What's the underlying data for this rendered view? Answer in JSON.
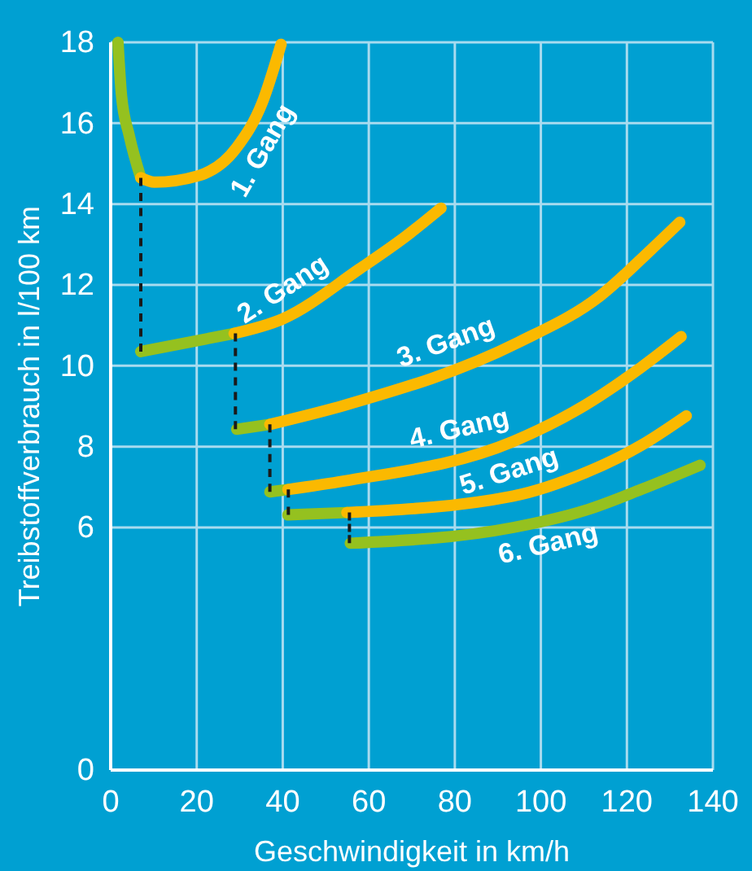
{
  "chart_data": {
    "type": "line",
    "xlabel": "Geschwindigkeit in km/h",
    "ylabel": "Treibstoffverbrauch in l/100 km",
    "xlim": [
      0,
      140
    ],
    "xticks": [
      0,
      20,
      40,
      60,
      80,
      100,
      120,
      140
    ],
    "ylim": [
      0,
      18
    ],
    "yticks": [
      0,
      6,
      8,
      10,
      12,
      14,
      16,
      18
    ],
    "grid": true,
    "legend": false,
    "marker": "none",
    "line_style": "solid",
    "series": [
      {
        "color": "#1a1a1a",
        "line_style": "dashed",
        "x": [
          7,
          7
        ],
        "values": [
          14.65,
          10.35
        ]
      },
      {
        "color": "#1a1a1a",
        "line_style": "dashed",
        "x": [
          29,
          29
        ],
        "values": [
          10.8,
          8.43
        ]
      },
      {
        "color": "#1a1a1a",
        "line_style": "dashed",
        "x": [
          37,
          37
        ],
        "values": [
          8.55,
          6.88
        ]
      },
      {
        "color": "#1a1a1a",
        "line_style": "dashed",
        "x": [
          41.3,
          41.3
        ],
        "values": [
          6.94,
          6.31
        ]
      },
      {
        "color": "#1a1a1a",
        "line_style": "dashed",
        "x": [
          55.5,
          55.5
        ],
        "values": [
          6.37,
          5.61
        ]
      },
      {
        "color": "#95c11f",
        "x": [
          1.7,
          2.5,
          4.3,
          7
        ],
        "values": [
          18,
          16.7,
          15.7,
          14.65
        ]
      },
      {
        "name": "1. Gang",
        "color": "#fbb900",
        "x": [
          7,
          10.2,
          20.4,
          29.3,
          35.2,
          39.6
        ],
        "values": [
          14.65,
          14.54,
          14.7,
          15.4,
          16.5,
          17.95
        ]
      },
      {
        "color": "#95c11f",
        "x": [
          7,
          28.7
        ],
        "values": [
          10.35,
          10.8
        ]
      },
      {
        "name": "2. Gang",
        "color": "#fbb900",
        "x": [
          28.7,
          40,
          57.9,
          68.6,
          76.8
        ],
        "values": [
          10.8,
          11.16,
          12.4,
          13.2,
          13.9
        ]
      },
      {
        "color": "#95c11f",
        "x": [
          29.3,
          37
        ],
        "values": [
          8.43,
          8.55
        ]
      },
      {
        "name": "3. Gang",
        "color": "#fbb900",
        "x": [
          37,
          54.3,
          94.8,
          113.8,
          125.7,
          132.3
        ],
        "values": [
          8.55,
          9.02,
          10.58,
          11.73,
          12.88,
          13.55
        ]
      },
      {
        "color": "#95c11f",
        "x": [
          37,
          41.2
        ],
        "values": [
          6.88,
          6.94
        ]
      },
      {
        "name": "4. Gang",
        "color": "#fbb900",
        "x": [
          41.2,
          54.3,
          93.6,
          110.2,
          123.3,
          132.6
        ],
        "values": [
          6.94,
          7.15,
          8.13,
          9.02,
          9.96,
          10.72
        ]
      },
      {
        "color": "#95c11f",
        "x": [
          41.2,
          54.9
        ],
        "values": [
          6.31,
          6.37
        ]
      },
      {
        "name": "5. Gang",
        "color": "#fbb900",
        "x": [
          54.9,
          93.6,
          110.2,
          123.3,
          133.8
        ],
        "values": [
          6.37,
          6.78,
          7.35,
          8.03,
          8.76
        ]
      },
      {
        "name": "6. Gang",
        "color": "#95c11f",
        "x": [
          55.7,
          93.6,
          110.2,
          123.3,
          137
        ],
        "values": [
          5.61,
          6.0,
          6.42,
          6.94,
          7.54
        ]
      }
    ]
  }
}
